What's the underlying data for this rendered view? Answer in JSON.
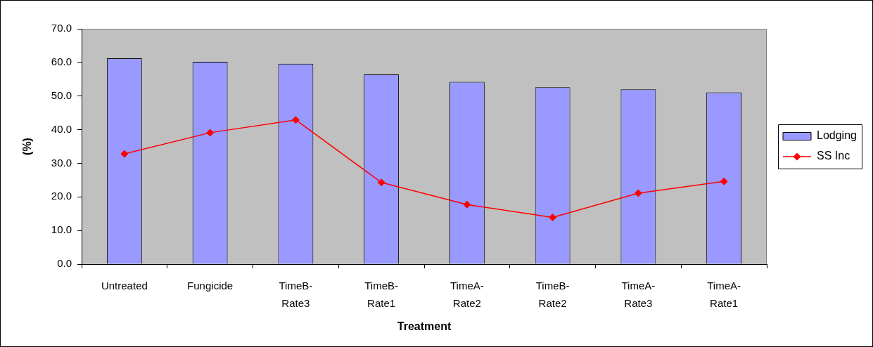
{
  "chart_data": {
    "type": "bar",
    "xlabel": "Treatment",
    "ylabel": "(%)",
    "categories": [
      "Untreated",
      "Fungicide",
      "TimeB-Rate3",
      "TimeB-Rate1",
      "TimeA-Rate2",
      "TimeB-Rate2",
      "TimeA-Rate3",
      "TimeA-Rate1"
    ],
    "series": [
      {
        "name": "Lodging",
        "color": "#9999ff",
        "values": [
          61.2,
          60.2,
          59.6,
          56.4,
          54.2,
          52.6,
          52.0,
          51.1
        ]
      },
      {
        "name": "SS Inc",
        "type": "line",
        "color": "#ff0000",
        "values": [
          32.8,
          39.1,
          42.9,
          24.3,
          17.7,
          13.9,
          21.1,
          24.6
        ]
      }
    ],
    "ylim": [
      0,
      70
    ],
    "yticks": [
      {
        "value": 0,
        "label": "0.0"
      },
      {
        "value": 10,
        "label": "10.0"
      },
      {
        "value": 20,
        "label": "20.0"
      },
      {
        "value": 30,
        "label": "30.0"
      },
      {
        "value": 40,
        "label": "40.0"
      },
      {
        "value": 50,
        "label": "50.0"
      },
      {
        "value": 60,
        "label": "60.0"
      },
      {
        "value": 70,
        "label": "70.0"
      }
    ],
    "legend": "right",
    "marker": "diamond"
  }
}
